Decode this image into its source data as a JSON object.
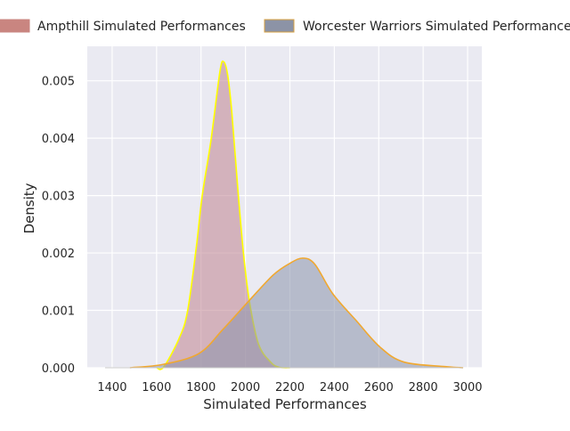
{
  "chart_data": {
    "type": "area",
    "title": "",
    "xlabel": "Simulated Performances",
    "ylabel": "Density",
    "xlim": [
      1288,
      3064
    ],
    "ylim": [
      0,
      0.0056
    ],
    "xticks": [
      1400,
      1600,
      1800,
      2000,
      2200,
      2400,
      2600,
      2800,
      3000
    ],
    "yticks": [
      "0.000",
      "0.001",
      "0.002",
      "0.003",
      "0.004",
      "0.005"
    ],
    "grid": true,
    "legend_position": "top",
    "series": [
      {
        "name": "Ampthill Simulated Performances",
        "fill": "#c0838f",
        "patch": "#c98580",
        "line": "#ffff00",
        "x": [
          1600,
          1631,
          1700,
          1739,
          1779,
          1805,
          1845,
          1885,
          1902,
          1920,
          1939,
          1965,
          1992,
          2019,
          2059,
          2113,
          2151,
          2200
        ],
        "y": [
          0,
          1e-05,
          0.0005,
          0.00098,
          0.00211,
          0.00299,
          0.00397,
          0.00516,
          0.00533,
          0.0051,
          0.00444,
          0.00315,
          0.00196,
          0.00113,
          0.00041,
          0.0001,
          1e-05,
          0
        ]
      },
      {
        "name": "Worcester Warriors Simulated Performances",
        "fill": "#8a93ab",
        "patch": "#8c93a6",
        "line": "#f0a830",
        "x": [
          1480,
          1631,
          1791,
          1899,
          2019,
          2126,
          2200,
          2259,
          2313,
          2393,
          2499,
          2606,
          2713,
          2899,
          2980
        ],
        "y": [
          0,
          6e-05,
          0.00025,
          0.00067,
          0.00118,
          0.00162,
          0.00182,
          0.00191,
          0.0018,
          0.00129,
          0.00082,
          0.00036,
          0.0001,
          2e-05,
          0
        ]
      }
    ]
  }
}
